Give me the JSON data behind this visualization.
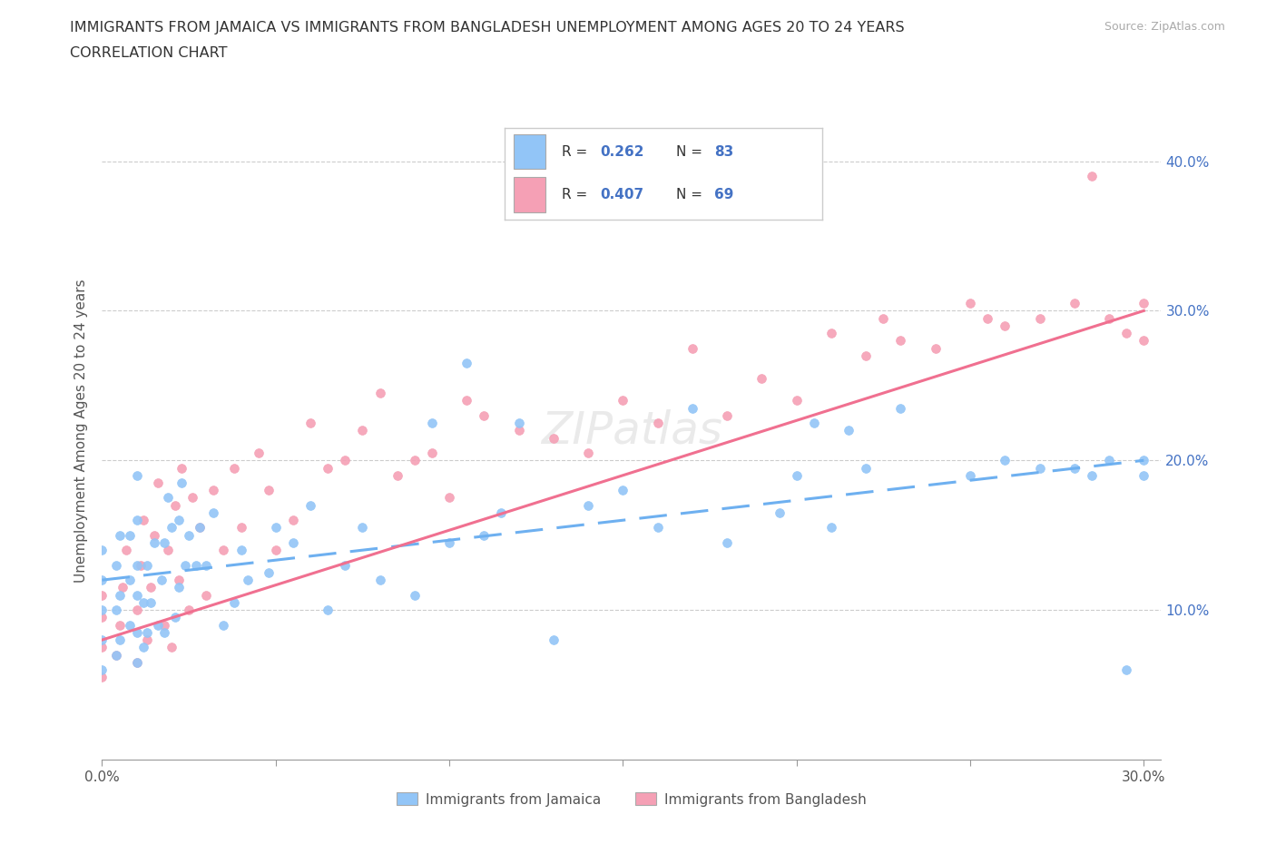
{
  "title_line1": "IMMIGRANTS FROM JAMAICA VS IMMIGRANTS FROM BANGLADESH UNEMPLOYMENT AMONG AGES 20 TO 24 YEARS",
  "title_line2": "CORRELATION CHART",
  "source_text": "Source: ZipAtlas.com",
  "ylabel": "Unemployment Among Ages 20 to 24 years",
  "xlim": [
    0.0,
    0.32
  ],
  "ylim": [
    0.0,
    0.44
  ],
  "watermark": "ZIPatlas",
  "jamaica_color": "#92C5F7",
  "bangladesh_color": "#F5A0B5",
  "jamaica_line_color": "#6EB0F0",
  "bangladesh_line_color": "#F07090",
  "R_jamaica": 0.262,
  "N_jamaica": 83,
  "R_bangladesh": 0.407,
  "N_bangladesh": 69,
  "jamaica_x": [
    0.0,
    0.0,
    0.0,
    0.0,
    0.0,
    0.004,
    0.004,
    0.004,
    0.005,
    0.005,
    0.005,
    0.008,
    0.008,
    0.008,
    0.01,
    0.01,
    0.01,
    0.01,
    0.01,
    0.01,
    0.012,
    0.012,
    0.013,
    0.013,
    0.014,
    0.015,
    0.016,
    0.017,
    0.018,
    0.018,
    0.019,
    0.02,
    0.021,
    0.022,
    0.022,
    0.023,
    0.024,
    0.025,
    0.027,
    0.028,
    0.03,
    0.032,
    0.035,
    0.038,
    0.04,
    0.042,
    0.048,
    0.05,
    0.055,
    0.06,
    0.065,
    0.07,
    0.075,
    0.08,
    0.09,
    0.095,
    0.1,
    0.105,
    0.11,
    0.115,
    0.12,
    0.13,
    0.14,
    0.15,
    0.16,
    0.17,
    0.18,
    0.195,
    0.2,
    0.205,
    0.21,
    0.215,
    0.22,
    0.23,
    0.25,
    0.26,
    0.27,
    0.28,
    0.285,
    0.29,
    0.295,
    0.3,
    0.3
  ],
  "jamaica_y": [
    0.06,
    0.08,
    0.1,
    0.12,
    0.14,
    0.07,
    0.1,
    0.13,
    0.08,
    0.11,
    0.15,
    0.09,
    0.12,
    0.15,
    0.065,
    0.085,
    0.11,
    0.13,
    0.16,
    0.19,
    0.075,
    0.105,
    0.085,
    0.13,
    0.105,
    0.145,
    0.09,
    0.12,
    0.085,
    0.145,
    0.175,
    0.155,
    0.095,
    0.115,
    0.16,
    0.185,
    0.13,
    0.15,
    0.13,
    0.155,
    0.13,
    0.165,
    0.09,
    0.105,
    0.14,
    0.12,
    0.125,
    0.155,
    0.145,
    0.17,
    0.1,
    0.13,
    0.155,
    0.12,
    0.11,
    0.225,
    0.145,
    0.265,
    0.15,
    0.165,
    0.225,
    0.08,
    0.17,
    0.18,
    0.155,
    0.235,
    0.145,
    0.165,
    0.19,
    0.225,
    0.155,
    0.22,
    0.195,
    0.235,
    0.19,
    0.2,
    0.195,
    0.195,
    0.19,
    0.2,
    0.06,
    0.19,
    0.2
  ],
  "bangladesh_x": [
    0.0,
    0.0,
    0.0,
    0.0,
    0.004,
    0.005,
    0.006,
    0.007,
    0.01,
    0.01,
    0.011,
    0.012,
    0.013,
    0.014,
    0.015,
    0.016,
    0.018,
    0.019,
    0.02,
    0.021,
    0.022,
    0.023,
    0.025,
    0.026,
    0.028,
    0.03,
    0.032,
    0.035,
    0.038,
    0.04,
    0.045,
    0.048,
    0.05,
    0.055,
    0.06,
    0.065,
    0.07,
    0.075,
    0.08,
    0.085,
    0.09,
    0.095,
    0.1,
    0.105,
    0.11,
    0.12,
    0.13,
    0.14,
    0.15,
    0.16,
    0.17,
    0.18,
    0.19,
    0.2,
    0.21,
    0.22,
    0.225,
    0.23,
    0.24,
    0.25,
    0.255,
    0.26,
    0.27,
    0.28,
    0.285,
    0.29,
    0.295,
    0.3,
    0.3
  ],
  "bangladesh_y": [
    0.055,
    0.075,
    0.095,
    0.11,
    0.07,
    0.09,
    0.115,
    0.14,
    0.065,
    0.1,
    0.13,
    0.16,
    0.08,
    0.115,
    0.15,
    0.185,
    0.09,
    0.14,
    0.075,
    0.17,
    0.12,
    0.195,
    0.1,
    0.175,
    0.155,
    0.11,
    0.18,
    0.14,
    0.195,
    0.155,
    0.205,
    0.18,
    0.14,
    0.16,
    0.225,
    0.195,
    0.2,
    0.22,
    0.245,
    0.19,
    0.2,
    0.205,
    0.175,
    0.24,
    0.23,
    0.22,
    0.215,
    0.205,
    0.24,
    0.225,
    0.275,
    0.23,
    0.255,
    0.24,
    0.285,
    0.27,
    0.295,
    0.28,
    0.275,
    0.305,
    0.295,
    0.29,
    0.295,
    0.305,
    0.39,
    0.295,
    0.285,
    0.28,
    0.305
  ]
}
